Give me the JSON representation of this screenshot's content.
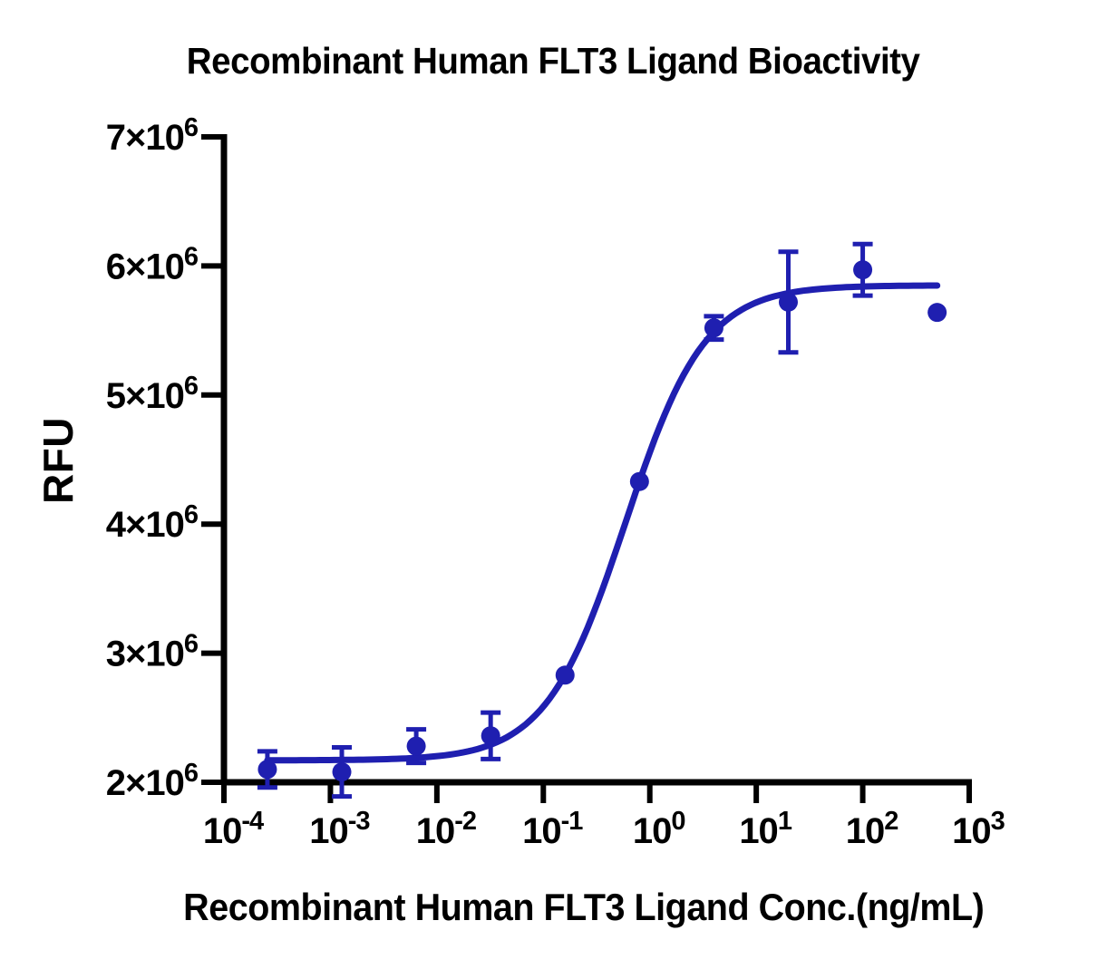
{
  "figure": {
    "background": "#ffffff",
    "axis_color": "#000000",
    "accent_color": "#1f1fb0"
  },
  "chart_data": {
    "type": "scatter",
    "title": "Recombinant Human FLT3 Ligand Bioactivity",
    "xlabel": "Recombinant Human FLT3 Ligand Conc.(ng/mL)",
    "ylabel": "RFU",
    "x_scale": "log10",
    "x_range_log": [
      -4,
      3
    ],
    "ylim": [
      2000000,
      7000000
    ],
    "grid": false,
    "legend_position": "none",
    "x_ticks": [
      {
        "main": "10",
        "sup": "-4",
        "log": -4
      },
      {
        "main": "10",
        "sup": "-3",
        "log": -3
      },
      {
        "main": "10",
        "sup": "-2",
        "log": -2
      },
      {
        "main": "10",
        "sup": "-1",
        "log": -1
      },
      {
        "main": "10",
        "sup": "0",
        "log": 0
      },
      {
        "main": "10",
        "sup": "1",
        "log": 1
      },
      {
        "main": "10",
        "sup": "2",
        "log": 2
      },
      {
        "main": "10",
        "sup": "3",
        "log": 3
      }
    ],
    "y_ticks": [
      {
        "main": "2×10",
        "sup": "6",
        "value": 2000000
      },
      {
        "main": "3×10",
        "sup": "6",
        "value": 3000000
      },
      {
        "main": "4×10",
        "sup": "6",
        "value": 4000000
      },
      {
        "main": "5×10",
        "sup": "6",
        "value": 5000000
      },
      {
        "main": "6×10",
        "sup": "6",
        "value": 6000000
      },
      {
        "main": "7×10",
        "sup": "6",
        "value": 7000000
      }
    ],
    "series": [
      {
        "name": "Recombinant Human FLT3 Ligand",
        "color": "#1f1fb0",
        "marker": "circle",
        "points": [
          {
            "conc_ng_ml": 0.000256,
            "rfu": 2100000,
            "err": 140000
          },
          {
            "conc_ng_ml": 0.00128,
            "rfu": 2080000,
            "err": 190000
          },
          {
            "conc_ng_ml": 0.0064,
            "rfu": 2280000,
            "err": 130000
          },
          {
            "conc_ng_ml": 0.032,
            "rfu": 2360000,
            "err": 180000
          },
          {
            "conc_ng_ml": 0.16,
            "rfu": 2830000,
            "err": 0
          },
          {
            "conc_ng_ml": 0.8,
            "rfu": 4330000,
            "err": 0
          },
          {
            "conc_ng_ml": 4,
            "rfu": 5520000,
            "err": 90000
          },
          {
            "conc_ng_ml": 20,
            "rfu": 5720000,
            "err": 390000
          },
          {
            "conc_ng_ml": 100,
            "rfu": 5970000,
            "err": 200000
          },
          {
            "conc_ng_ml": 500,
            "rfu": 5640000,
            "err": 0
          }
        ]
      }
    ],
    "fit_curve": {
      "model": "4PL",
      "bottom": 2170000,
      "top": 5850000,
      "ec50_ng_ml": 0.59,
      "hill": 1.16,
      "x_span": [
        0.000256,
        500
      ]
    }
  }
}
